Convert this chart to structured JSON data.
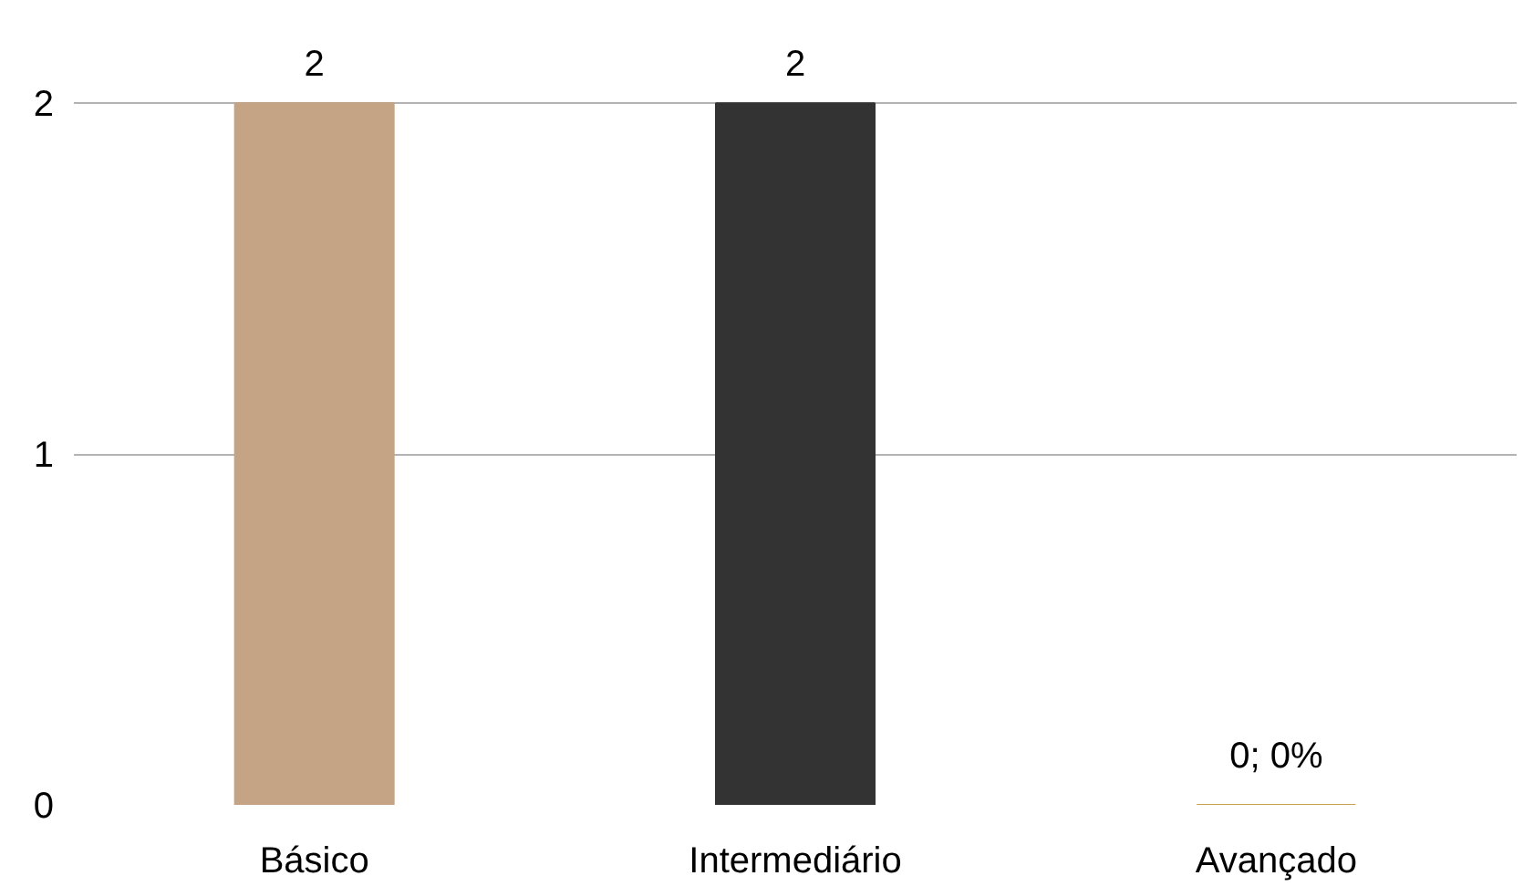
{
  "chart_data": {
    "type": "bar",
    "categories": [
      "Básico",
      "Intermediário",
      "Avançado"
    ],
    "values": [
      2,
      2,
      0
    ],
    "colors": [
      "#c4a484",
      "#333333",
      "#c8a050"
    ],
    "value_labels": [
      "2",
      "2",
      "0; 0%"
    ],
    "ylim": [
      0,
      2
    ],
    "yticks": [
      0,
      1,
      2
    ],
    "grid": "y"
  }
}
